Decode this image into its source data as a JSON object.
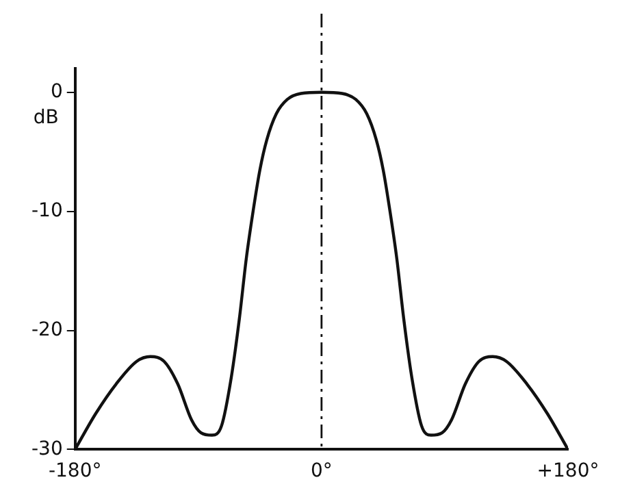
{
  "chart_data": {
    "type": "line",
    "ylabel": "dB",
    "x": [
      -180,
      -165,
      -150,
      -135,
      -125,
      -115,
      -105,
      -95,
      -88,
      -80,
      -73,
      -66,
      -60,
      -55,
      -50,
      -45,
      -40,
      -33,
      -25,
      -15,
      0,
      15,
      25,
      33,
      40,
      45,
      50,
      55,
      60,
      66,
      73,
      80,
      88,
      95,
      105,
      115,
      125,
      135,
      150,
      165,
      180
    ],
    "series": [
      {
        "color": "#111111",
        "values": [
          -30,
          -27,
          -24.5,
          -22.6,
          -22.2,
          -22.6,
          -24.5,
          -27.5,
          -28.6,
          -28.8,
          -28,
          -24,
          -19,
          -14,
          -10,
          -6.5,
          -4,
          -1.8,
          -0.6,
          -0.1,
          0,
          -0.1,
          -0.6,
          -1.8,
          -4,
          -6.5,
          -10,
          -14,
          -19,
          -24,
          -28,
          -28.8,
          -28.6,
          -27.5,
          -24.5,
          -22.6,
          -22.2,
          -22.6,
          -24.5,
          -27,
          -30
        ]
      }
    ],
    "xlim": [
      -180,
      180
    ],
    "xticks": [
      {
        "value": -180,
        "label": "-180°"
      },
      {
        "value": 0,
        "label": "0°"
      },
      {
        "value": 180,
        "label": "+180°"
      }
    ],
    "ylim": [
      -30,
      2
    ],
    "yticks": [
      0,
      -10,
      -20,
      -30
    ],
    "ref_lines": [
      {
        "axis": "x",
        "value": 0,
        "line_style": "dashed",
        "color": "#111111"
      }
    ],
    "grid": false,
    "legend": false,
    "marker": "none",
    "line_style": "solid"
  }
}
